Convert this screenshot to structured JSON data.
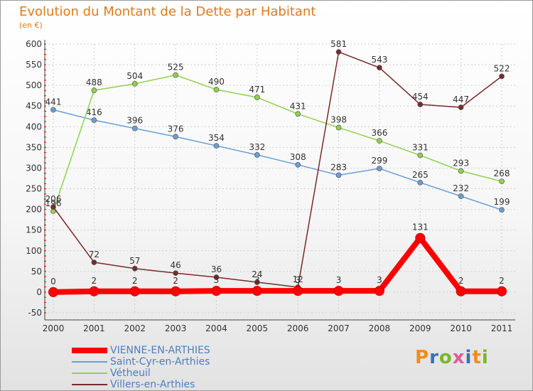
{
  "title": "Evolution du Montant de la Dette par Habitant",
  "subtitle": "(en €)",
  "logo": {
    "letters": [
      "P",
      "r",
      "o",
      "x",
      "i",
      "t",
      "i"
    ],
    "colors": [
      "#f08c1e",
      "#3d6fb5",
      "#76b82a",
      "#e05a9a",
      "#3d6fb5",
      "#f08c1e",
      "#76b82a"
    ]
  },
  "chart_data": {
    "type": "line",
    "title": "Evolution du Montant de la Dette par Habitant",
    "ylabel": "(en €)",
    "x": [
      "2000",
      "2001",
      "2002",
      "2003",
      "2004",
      "2005",
      "2006",
      "2007",
      "2008",
      "2009",
      "2010",
      "2011"
    ],
    "ylim": [
      -50,
      600
    ],
    "yticks": [
      -50,
      0,
      50,
      100,
      150,
      200,
      250,
      300,
      350,
      400,
      450,
      500,
      550,
      600
    ],
    "grid": true,
    "legend": "bottom-left",
    "series": [
      {
        "name": "VIENNE-EN-ARTHIES",
        "color": "#ff0000",
        "values": [
          0,
          2,
          2,
          2,
          3,
          3,
          3,
          3,
          3,
          131,
          2,
          2
        ],
        "labels": [
          "0",
          "2",
          "2",
          "2",
          "3",
          "3",
          "3",
          "3",
          "3",
          "131",
          "2",
          "2"
        ]
      },
      {
        "name": "Saint-Cyr-en-Arthies",
        "color": "#6a9fd3",
        "values": [
          441,
          416,
          396,
          376,
          354,
          332,
          308,
          283,
          299,
          265,
          232,
          199
        ],
        "labels": [
          "441",
          "416",
          "396",
          "376",
          "354",
          "332",
          "308",
          "283",
          "299",
          "265",
          "232",
          "199"
        ]
      },
      {
        "name": "Vétheuil",
        "color": "#8fd14f",
        "values": [
          196,
          488,
          504,
          525,
          490,
          471,
          431,
          398,
          366,
          331,
          293,
          268
        ],
        "labels": [
          "196",
          "488",
          "504",
          "525",
          "490",
          "471",
          "431",
          "398",
          "366",
          "331",
          "293",
          "268"
        ]
      },
      {
        "name": "Villers-en-Arthies",
        "color": "#7a2a2a",
        "values": [
          206,
          72,
          57,
          46,
          36,
          24,
          12,
          581,
          543,
          454,
          447,
          522
        ],
        "labels": [
          "206",
          "72",
          "57",
          "46",
          "36",
          "24",
          "12",
          "581",
          "543",
          "454",
          "447",
          "522"
        ]
      }
    ]
  }
}
